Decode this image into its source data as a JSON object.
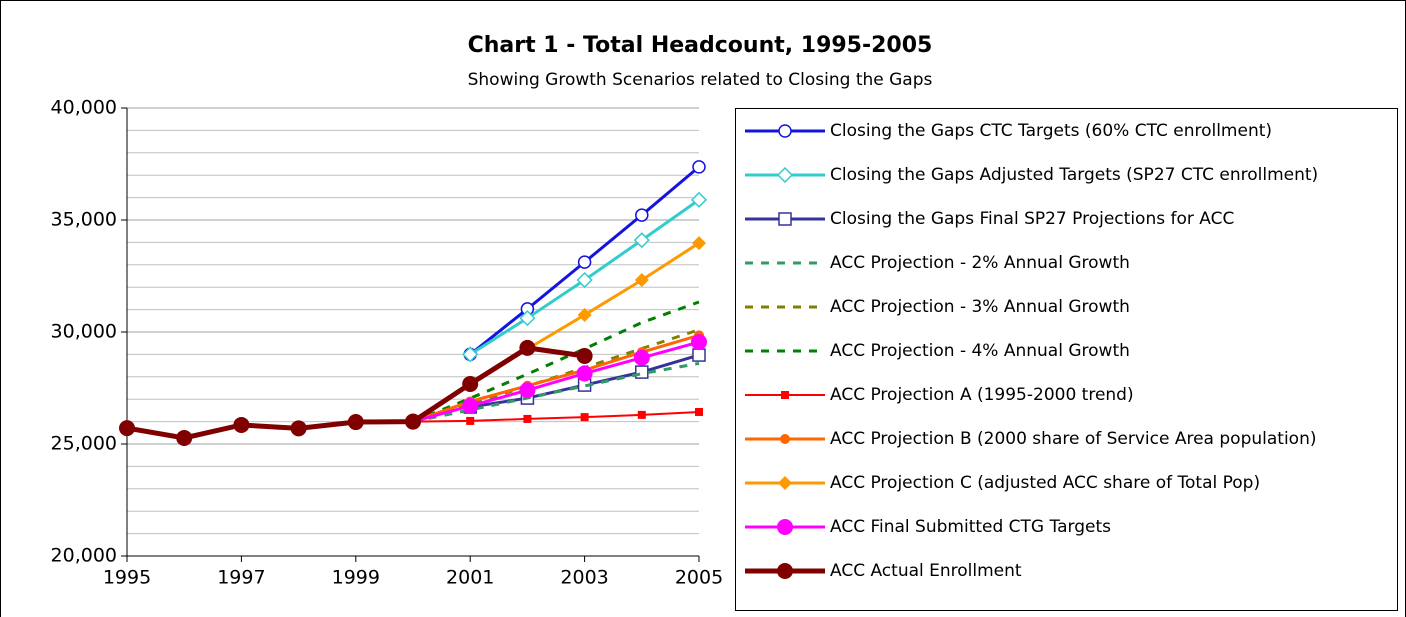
{
  "chart_data": {
    "type": "line",
    "title": "Chart 1 - Total Headcount, 1995-2005",
    "subtitle": "Showing Growth Scenarios related to Closing the Gaps",
    "x": [
      1995,
      1996,
      1997,
      1998,
      1999,
      2000,
      2001,
      2002,
      2003,
      2004,
      2005
    ],
    "xlim": [
      1995,
      2005
    ],
    "xticks": [
      1995,
      1997,
      1999,
      2001,
      2003,
      2005
    ],
    "ylim": [
      20000,
      40000
    ],
    "yticks": [
      {
        "value": 20000,
        "label": "20,000"
      },
      {
        "value": 25000,
        "label": "25,000"
      },
      {
        "value": 30000,
        "label": "30,000"
      },
      {
        "value": 35000,
        "label": "35,000"
      },
      {
        "value": 40000,
        "label": "40,000"
      }
    ],
    "y_minor_grid": [
      21000,
      22000,
      23000,
      24000,
      26000,
      27000,
      28000,
      29000,
      31000,
      32000,
      33000,
      34000,
      36000,
      37000,
      38000,
      39000
    ],
    "grid": true,
    "legend": "right",
    "series": [
      {
        "name": "Closing the Gaps CTC Targets (60% CTC enrollment)",
        "color": "#1414e0",
        "marker": "open-circle",
        "dash": "solid",
        "width": 3,
        "values": [
          null,
          null,
          null,
          null,
          null,
          null,
          29000,
          31030,
          33120,
          35220,
          37370
        ]
      },
      {
        "name": "Closing the Gaps Adjusted Targets (SP27 CTC enrollment)",
        "color": "#33cccc",
        "marker": "open-diamond",
        "dash": "solid",
        "width": 3,
        "values": [
          null,
          null,
          null,
          null,
          null,
          null,
          29000,
          30620,
          32320,
          34100,
          35900
        ]
      },
      {
        "name": "Closing the Gaps Final SP27 Projections for ACC",
        "color": "#333399",
        "marker": "open-square",
        "dash": "solid",
        "width": 3,
        "values": [
          null,
          null,
          null,
          null,
          null,
          null,
          26650,
          27050,
          27630,
          28210,
          28970
        ]
      },
      {
        "name": "ACC Projection - 2% Annual Growth",
        "color": "#339966",
        "marker": "none",
        "dash": "dotted",
        "width": 3,
        "values": [
          null,
          null,
          null,
          null,
          null,
          26000,
          26520,
          27050,
          27590,
          28140,
          28600
        ]
      },
      {
        "name": "ACC Projection - 3% Annual Growth",
        "color": "#808000",
        "marker": "none",
        "dash": "dotted",
        "width": 3,
        "values": [
          null,
          null,
          null,
          null,
          null,
          26000,
          26780,
          27580,
          28410,
          29260,
          30100
        ]
      },
      {
        "name": "ACC Projection - 4% Annual Growth",
        "color": "#008000",
        "marker": "none",
        "dash": "dotted",
        "width": 3,
        "values": [
          null,
          null,
          null,
          null,
          null,
          26000,
          27040,
          28120,
          29250,
          30420,
          31340
        ]
      },
      {
        "name": "ACC Projection A (1995-2000 trend)",
        "color": "#ff0000",
        "marker": "small-square",
        "dash": "solid",
        "width": 2,
        "values": [
          null,
          null,
          null,
          null,
          null,
          26000,
          26030,
          26120,
          26200,
          26300,
          26430
        ]
      },
      {
        "name": "ACC Projection B (2000 share of Service Area population)",
        "color": "#ff6600",
        "marker": "filled-circle",
        "dash": "solid",
        "width": 3,
        "values": [
          null,
          null,
          null,
          null,
          null,
          26000,
          26900,
          27600,
          28300,
          29100,
          29850
        ]
      },
      {
        "name": "ACC Projection C (adjusted ACC share of Total Pop)",
        "color": "#ff9900",
        "marker": "filled-diamond",
        "dash": "solid",
        "width": 3,
        "values": [
          null,
          null,
          null,
          null,
          null,
          26000,
          27700,
          29240,
          30760,
          32320,
          33970
        ]
      },
      {
        "name": "ACC Final Submitted CTG Targets",
        "color": "#ff00ff",
        "marker": "big-circle",
        "dash": "solid",
        "width": 3,
        "values": [
          null,
          null,
          null,
          null,
          null,
          26000,
          26700,
          27400,
          28150,
          28850,
          29550
        ]
      },
      {
        "name": "ACC Actual Enrollment",
        "color": "#800000",
        "marker": "big-circle",
        "dash": "solid",
        "width": 5,
        "values": [
          25710,
          25270,
          25850,
          25700,
          25980,
          26000,
          27680,
          29290,
          28930,
          null,
          null
        ]
      }
    ]
  }
}
